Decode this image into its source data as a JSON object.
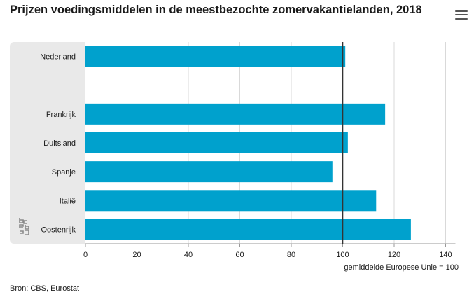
{
  "title": "Prijzen voedingsmiddelen in de meestbezochte zomervakantielanden, 2018",
  "menu_icon": "hamburger-menu-icon",
  "logo_icon": "cbs-logo-icon",
  "source": "Bron: CBS, Eurostat",
  "colors": {
    "bar": "#00a1cd",
    "reference_line": "#333333",
    "grid": "#d9d9d9",
    "panel": "#e9e9e9"
  },
  "chart_data": {
    "type": "bar",
    "orientation": "horizontal",
    "categories": [
      "Nederland",
      "",
      "Frankrijk",
      "Duitsland",
      "Spanje",
      "Italië",
      "Oostenrijk"
    ],
    "values": [
      101,
      null,
      116.5,
      102,
      96,
      113,
      126.5
    ],
    "title": "Prijzen voedingsmiddelen in de meestbezochte zomervakantielanden, 2018",
    "xlabel": "gemiddelde Europese Unie = 100",
    "ylabel": "",
    "xlim": [
      0,
      140
    ],
    "xticks": [
      0,
      20,
      40,
      60,
      80,
      100,
      120,
      140
    ],
    "reference_line": 100,
    "grid": true,
    "legend": "none"
  }
}
